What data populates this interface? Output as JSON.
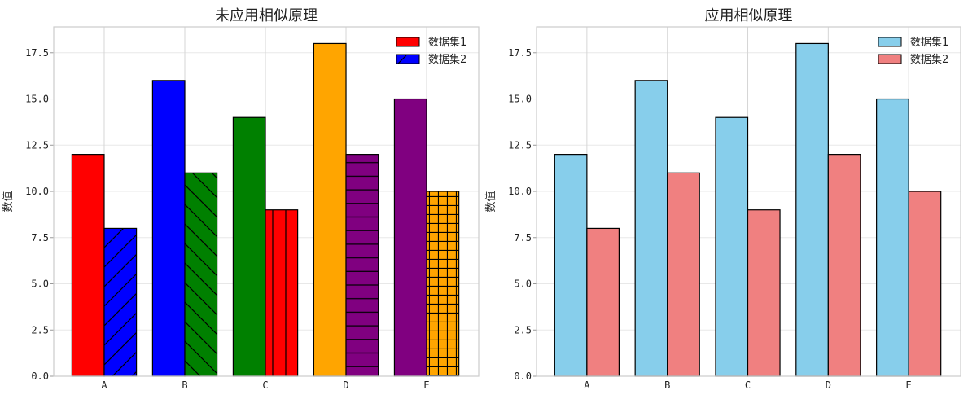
{
  "chart_data": [
    {
      "type": "bar",
      "title": "未应用相似原理",
      "xlabel": "",
      "ylabel": "数值",
      "categories": [
        "A",
        "B",
        "C",
        "D",
        "E"
      ],
      "ylim": [
        0,
        18.9
      ],
      "yticks": [
        "0.0",
        "2.5",
        "5.0",
        "7.5",
        "10.0",
        "12.5",
        "15.0",
        "17.5"
      ],
      "grid": true,
      "legend_position": "top-right",
      "series": [
        {
          "name": "数据集1",
          "values": [
            12,
            16,
            14,
            18,
            15
          ],
          "colors": [
            "#ff0000",
            "#0000ff",
            "#008000",
            "#ffa500",
            "#800080"
          ],
          "hatches": [
            "",
            "",
            "",
            "",
            ""
          ],
          "legend_color": "#ff0000",
          "legend_hatch": ""
        },
        {
          "name": "数据集2",
          "values": [
            8,
            11,
            9,
            12,
            10
          ],
          "colors": [
            "#0000ff",
            "#008000",
            "#ff0000",
            "#800080",
            "#ffa500"
          ],
          "hatches": [
            "/",
            "\\",
            "|",
            "-",
            "+"
          ],
          "legend_color": "#0000ff",
          "legend_hatch": "/"
        }
      ]
    },
    {
      "type": "bar",
      "title": "应用相似原理",
      "xlabel": "",
      "ylabel": "数值",
      "categories": [
        "A",
        "B",
        "C",
        "D",
        "E"
      ],
      "ylim": [
        0,
        18.9
      ],
      "yticks": [
        "0.0",
        "2.5",
        "5.0",
        "7.5",
        "10.0",
        "12.5",
        "15.0",
        "17.5"
      ],
      "grid": true,
      "legend_position": "top-right",
      "series": [
        {
          "name": "数据集1",
          "values": [
            12,
            16,
            14,
            18,
            15
          ],
          "colors": [
            "#87ceeb",
            "#87ceeb",
            "#87ceeb",
            "#87ceeb",
            "#87ceeb"
          ],
          "hatches": [
            "",
            "",
            "",
            "",
            ""
          ],
          "legend_color": "#87ceeb",
          "legend_hatch": ""
        },
        {
          "name": "数据集2",
          "values": [
            8,
            11,
            9,
            12,
            10
          ],
          "colors": [
            "#f08080",
            "#f08080",
            "#f08080",
            "#f08080",
            "#f08080"
          ],
          "hatches": [
            "",
            "",
            "",
            "",
            ""
          ],
          "legend_color": "#f08080",
          "legend_hatch": ""
        }
      ]
    }
  ]
}
